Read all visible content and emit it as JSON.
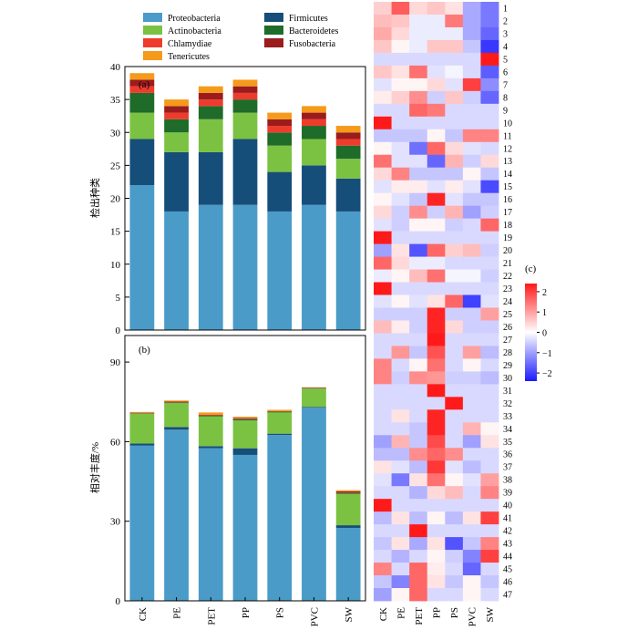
{
  "legend": [
    {
      "name": "Proteobacteria",
      "color": "#4a9bc8"
    },
    {
      "name": "Firmicutes",
      "color": "#164e7a"
    },
    {
      "name": "Actinobacteria",
      "color": "#7cc242"
    },
    {
      "name": "Bacteroidetes",
      "color": "#1f6b2a"
    },
    {
      "name": "Chlamydiae",
      "color": "#ef3b2c"
    },
    {
      "name": "Fusobacteria",
      "color": "#9b1c1c"
    },
    {
      "name": "Tenericutes",
      "color": "#f59a1b"
    }
  ],
  "chart_data": [
    {
      "type": "bar",
      "stacked": true,
      "panel_label": "(a)",
      "ylabel": "检出种类",
      "categories": [
        "CK",
        "PE",
        "PET",
        "PP",
        "PS",
        "PVC",
        "SW"
      ],
      "ylim": [
        0,
        40
      ],
      "yticks": [
        0,
        5,
        10,
        15,
        20,
        25,
        30,
        35,
        40
      ],
      "series": [
        {
          "name": "Proteobacteria",
          "values": [
            22,
            18,
            19,
            19,
            18,
            19,
            18
          ]
        },
        {
          "name": "Firmicutes",
          "values": [
            7,
            9,
            8,
            10,
            6,
            6,
            5
          ]
        },
        {
          "name": "Actinobacteria",
          "values": [
            4,
            3,
            5,
            4,
            4,
            4,
            3
          ]
        },
        {
          "name": "Bacteroidetes",
          "values": [
            3,
            2,
            2,
            2,
            2,
            2,
            2
          ]
        },
        {
          "name": "Chlamydiae",
          "values": [
            1,
            1,
            1,
            1,
            1,
            1,
            1
          ]
        },
        {
          "name": "Fusobacteria",
          "values": [
            1,
            1,
            1,
            1,
            1,
            1,
            1
          ]
        },
        {
          "name": "Tenericutes",
          "values": [
            1,
            1,
            1,
            1,
            1,
            1,
            1
          ]
        }
      ]
    },
    {
      "type": "bar",
      "stacked": true,
      "panel_label": "(b)",
      "ylabel": "相对丰度/%",
      "categories": [
        "CK",
        "PE",
        "PET",
        "PP",
        "PS",
        "PVC",
        "SW"
      ],
      "ylim": [
        0,
        100
      ],
      "yticks": [
        0,
        30,
        60,
        90
      ],
      "series": [
        {
          "name": "Proteobacteria",
          "values": [
            58.5,
            64.5,
            57.5,
            55,
            62.5,
            72.8,
            27.5
          ]
        },
        {
          "name": "Firmicutes",
          "values": [
            0.8,
            1.0,
            0.8,
            2.5,
            0.5,
            0.3,
            1.0
          ]
        },
        {
          "name": "Actinobacteria",
          "values": [
            11.2,
            9.0,
            11.2,
            10.5,
            8.0,
            6.9,
            11.8
          ]
        },
        {
          "name": "Bacteroidetes",
          "values": [
            0.2,
            0.3,
            0.3,
            0.5,
            0.3,
            0.2,
            0.4
          ]
        },
        {
          "name": "Chlamydiae",
          "values": [
            0.1,
            0.1,
            0.1,
            0.3,
            0.1,
            0.1,
            0.2
          ]
        },
        {
          "name": "Fusobacteria",
          "values": [
            0.1,
            0.2,
            0.2,
            0.2,
            0.1,
            0.1,
            0.4
          ]
        },
        {
          "name": "Tenericutes",
          "values": [
            0.3,
            0.4,
            0.9,
            0.4,
            0.5,
            0.1,
            0.4
          ]
        }
      ]
    },
    {
      "type": "heatmap",
      "panel_label": "(c)",
      "columns": [
        "CK",
        "PE",
        "PET",
        "PP",
        "PS",
        "PVC",
        "SW"
      ],
      "rows": [
        "1",
        "2",
        "3",
        "4",
        "5",
        "6",
        "7",
        "8",
        "9",
        "10",
        "11",
        "12",
        "13",
        "14",
        "15",
        "16",
        "17",
        "18",
        "19",
        "20",
        "21",
        "22",
        "23",
        "24",
        "25",
        "26",
        "27",
        "28",
        "29",
        "30",
        "31",
        "32",
        "33",
        "34",
        "35",
        "36",
        "37",
        "38",
        "39",
        "40",
        "41",
        "42",
        "43",
        "44",
        "45",
        "46",
        "47"
      ],
      "colorbar": {
        "ticks": [
          -2,
          -1,
          0,
          1,
          2
        ],
        "range": [
          -2.4,
          2.4
        ],
        "low": "#1a1aff",
        "mid": "#ffffff",
        "high": "#ff1a1a"
      },
      "values": [
        [
          0.5,
          1.7,
          0.4,
          0.6,
          0.3,
          -0.9,
          -1.4
        ],
        [
          0.7,
          0.6,
          -0.2,
          -0.2,
          1.4,
          -0.9,
          -1.4
        ],
        [
          0.9,
          0.4,
          -0.2,
          -0.2,
          -0.2,
          -0.9,
          -1.6
        ],
        [
          0.6,
          0.1,
          -0.2,
          0.6,
          0.6,
          -0.6,
          -2.1
        ],
        [
          -0.4,
          -0.4,
          -0.4,
          -0.4,
          -0.4,
          -0.4,
          2.4
        ],
        [
          0.6,
          0.3,
          1.5,
          -0.3,
          -0.1,
          -0.4,
          -1.7
        ],
        [
          -0.3,
          0.1,
          0.1,
          0.4,
          -0.3,
          2.0,
          -1.2
        ],
        [
          0.2,
          0.5,
          1.2,
          -0.5,
          0.6,
          -0.5,
          -1.6
        ],
        [
          -0.4,
          -0.4,
          1.6,
          1.4,
          -0.4,
          -0.4,
          -0.4
        ],
        [
          2.4,
          -0.4,
          -0.4,
          -0.4,
          -0.4,
          -0.4,
          -0.4
        ],
        [
          -0.6,
          -0.6,
          -0.6,
          0.1,
          -0.6,
          1.3,
          1.3
        ],
        [
          0.1,
          -0.3,
          -1.5,
          1.6,
          0.4,
          -0.3,
          -0.4
        ],
        [
          1.5,
          -0.3,
          -0.3,
          -1.6,
          0.8,
          -0.5,
          0.4
        ],
        [
          0.4,
          1.3,
          -0.6,
          -0.6,
          -0.6,
          0.1,
          -0.6
        ],
        [
          -0.3,
          0.2,
          0.2,
          -0.3,
          0.2,
          -0.3,
          -1.9
        ],
        [
          0.1,
          -0.3,
          -0.6,
          2.3,
          -0.3,
          -0.6,
          -0.6
        ],
        [
          0.4,
          -0.5,
          1.2,
          -0.5,
          0.8,
          -1.0,
          -0.5
        ],
        [
          -0.3,
          -0.5,
          0.1,
          0.1,
          -0.5,
          -0.4,
          1.6
        ],
        [
          2.4,
          -0.4,
          -0.4,
          -0.4,
          -0.4,
          -0.4,
          -0.4
        ],
        [
          -1.0,
          0.3,
          -1.8,
          1.6,
          0.5,
          0.7,
          -0.5
        ],
        [
          1.6,
          0.4,
          -0.2,
          -0.2,
          -0.4,
          -0.4,
          -0.4
        ],
        [
          -0.2,
          0.1,
          0.7,
          1.5,
          -0.1,
          -0.1,
          -0.5
        ],
        [
          2.4,
          -0.4,
          -0.4,
          -0.4,
          -0.4,
          -0.4,
          -0.4
        ],
        [
          -0.3,
          0.1,
          -0.3,
          0.3,
          1.6,
          -2.0,
          -0.3
        ],
        [
          -0.5,
          -0.5,
          -0.5,
          2.3,
          -0.5,
          -0.5,
          1.0
        ],
        [
          0.7,
          0.2,
          -0.5,
          2.3,
          0.4,
          -0.5,
          -0.5
        ],
        [
          -0.4,
          -0.4,
          -0.4,
          2.4,
          -0.4,
          -0.4,
          -0.4
        ],
        [
          -0.4,
          1.1,
          -0.6,
          1.8,
          -0.4,
          1.0,
          -0.7
        ],
        [
          1.3,
          -0.4,
          0.1,
          1.5,
          -0.4,
          0.1,
          -0.4
        ],
        [
          1.3,
          -0.5,
          1.2,
          1.1,
          -0.5,
          -0.5,
          -0.7
        ],
        [
          -0.4,
          -0.4,
          -0.4,
          2.4,
          -0.4,
          -0.4,
          -0.4
        ],
        [
          -0.4,
          -0.4,
          -0.4,
          -0.4,
          2.4,
          -0.4,
          -0.4
        ],
        [
          -0.4,
          0.3,
          -0.4,
          2.3,
          -0.4,
          -0.4,
          -0.4
        ],
        [
          -0.4,
          -0.4,
          -0.6,
          2.3,
          -0.4,
          0.8,
          0.1
        ],
        [
          -1.0,
          0.8,
          -0.6,
          1.9,
          -0.4,
          -1.0,
          0.3
        ],
        [
          -0.7,
          -0.7,
          1.2,
          1.6,
          1.2,
          -0.4,
          -0.4
        ],
        [
          0.3,
          -0.3,
          -0.7,
          2.1,
          -0.3,
          -0.7,
          -0.4
        ],
        [
          -0.3,
          -1.4,
          0.3,
          1.5,
          0.1,
          -0.3,
          1.0
        ],
        [
          -0.4,
          -0.4,
          -0.8,
          0.4,
          0.7,
          -0.4,
          1.3
        ],
        [
          2.4,
          -0.4,
          -0.4,
          -0.4,
          -0.4,
          -0.4,
          -0.4
        ],
        [
          -0.7,
          0.3,
          -0.7,
          0.1,
          -0.7,
          0.3,
          2.0
        ],
        [
          -0.4,
          -0.4,
          2.4,
          -0.4,
          -0.4,
          -0.4,
          -0.4
        ],
        [
          -0.6,
          0.3,
          -0.9,
          0.3,
          -1.8,
          -0.6,
          1.3
        ],
        [
          -0.4,
          -0.8,
          -0.4,
          0.1,
          -0.5,
          -1.3,
          2.0
        ],
        [
          1.3,
          -0.4,
          1.6,
          0.2,
          -0.4,
          -1.6,
          -0.4
        ],
        [
          -0.6,
          -1.3,
          1.6,
          0.3,
          -0.6,
          0.1,
          -0.6
        ],
        [
          -1.0,
          0.1,
          1.6,
          -0.4,
          -0.4,
          0.1,
          -0.4
        ]
      ]
    }
  ]
}
